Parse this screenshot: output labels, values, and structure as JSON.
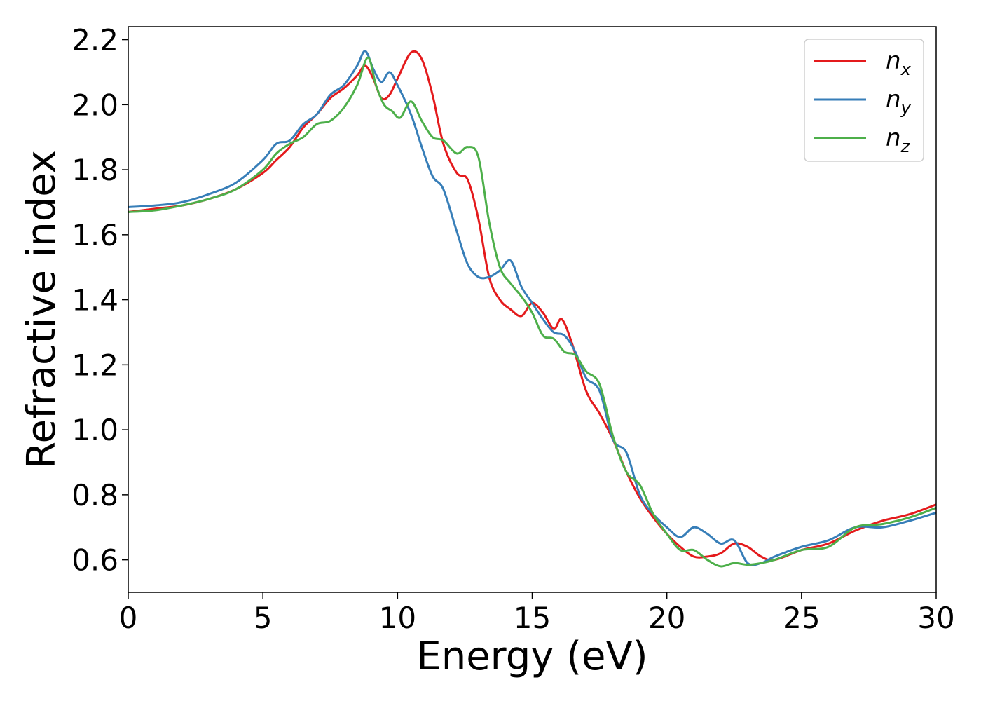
{
  "chart_data": {
    "type": "line",
    "xlabel": "Energy (eV)",
    "ylabel": "Refractive index",
    "xlim": [
      0,
      30
    ],
    "ylim": [
      0.5,
      2.24
    ],
    "xticks": [
      0,
      5,
      10,
      15,
      20,
      25,
      30
    ],
    "xtick_labels": [
      "0",
      "5",
      "10",
      "15",
      "20",
      "25",
      "30"
    ],
    "yticks": [
      0.6,
      0.8,
      1.0,
      1.2,
      1.4,
      1.6,
      1.8,
      2.0,
      2.2
    ],
    "ytick_labels": [
      "0.6",
      "0.8",
      "1.0",
      "1.2",
      "1.4",
      "1.6",
      "1.8",
      "2.0",
      "2.2"
    ],
    "grid": false,
    "legend_position": "top-right",
    "series": [
      {
        "name": "n_x",
        "label_base": "n",
        "label_sub": "x",
        "color": "#e41a1c",
        "x": [
          0,
          1,
          2,
          3,
          4,
          5,
          5.5,
          6,
          6.5,
          7,
          7.5,
          8,
          8.5,
          8.8,
          9.1,
          9.4,
          9.7,
          10,
          10.5,
          10.9,
          11.3,
          11.7,
          12.2,
          12.6,
          13,
          13.4,
          13.8,
          14.2,
          14.6,
          15,
          15.4,
          15.8,
          16.1,
          16.5,
          17,
          17.5,
          18,
          18.5,
          19,
          19.5,
          20,
          20.5,
          21,
          21.5,
          22,
          22.5,
          23,
          23.5,
          24,
          25,
          26,
          27,
          28,
          29,
          30
        ],
        "y": [
          1.67,
          1.68,
          1.69,
          1.71,
          1.74,
          1.79,
          1.83,
          1.87,
          1.93,
          1.97,
          2.02,
          2.05,
          2.09,
          2.12,
          2.08,
          2.02,
          2.03,
          2.08,
          2.16,
          2.14,
          2.03,
          1.88,
          1.79,
          1.77,
          1.65,
          1.47,
          1.4,
          1.37,
          1.35,
          1.39,
          1.36,
          1.31,
          1.34,
          1.26,
          1.12,
          1.05,
          0.97,
          0.87,
          0.79,
          0.73,
          0.68,
          0.64,
          0.61,
          0.61,
          0.62,
          0.65,
          0.64,
          0.61,
          0.6,
          0.63,
          0.65,
          0.69,
          0.72,
          0.74,
          0.77
        ]
      },
      {
        "name": "n_y",
        "label_base": "n",
        "label_sub": "y",
        "color": "#377eb8",
        "x": [
          0,
          1,
          2,
          3,
          4,
          5,
          5.5,
          6,
          6.5,
          7,
          7.5,
          8,
          8.5,
          8.8,
          9.1,
          9.4,
          9.7,
          10,
          10.5,
          10.9,
          11.3,
          11.7,
          12.2,
          12.6,
          13,
          13.4,
          13.8,
          14.2,
          14.6,
          15,
          15.4,
          15.8,
          16.2,
          16.6,
          17,
          17.5,
          18,
          18.5,
          19,
          19.5,
          20,
          20.5,
          21,
          21.5,
          22,
          22.5,
          23,
          23.5,
          24,
          25,
          26,
          27,
          28,
          29,
          30
        ],
        "y": [
          1.685,
          1.69,
          1.7,
          1.725,
          1.76,
          1.83,
          1.88,
          1.89,
          1.94,
          1.97,
          2.03,
          2.06,
          2.12,
          2.165,
          2.11,
          2.07,
          2.1,
          2.06,
          1.97,
          1.87,
          1.78,
          1.74,
          1.61,
          1.51,
          1.47,
          1.47,
          1.49,
          1.52,
          1.44,
          1.39,
          1.34,
          1.3,
          1.29,
          1.24,
          1.16,
          1.12,
          0.97,
          0.93,
          0.8,
          0.74,
          0.7,
          0.67,
          0.7,
          0.68,
          0.65,
          0.66,
          0.59,
          0.59,
          0.61,
          0.64,
          0.66,
          0.7,
          0.7,
          0.72,
          0.745
        ]
      },
      {
        "name": "n_z",
        "label_base": "n",
        "label_sub": "z",
        "color": "#4daf4a",
        "x": [
          0,
          1,
          2,
          3,
          4,
          5,
          5.5,
          6,
          6.5,
          7,
          7.5,
          8,
          8.5,
          8.9,
          9.2,
          9.5,
          9.8,
          10.1,
          10.5,
          10.9,
          11.3,
          11.7,
          12.2,
          12.6,
          13,
          13.4,
          13.8,
          14.2,
          14.6,
          15,
          15.4,
          15.8,
          16.2,
          16.6,
          17,
          17.5,
          18,
          18.5,
          19,
          19.5,
          20,
          20.5,
          21,
          21.5,
          22,
          22.5,
          23,
          23.5,
          24,
          25,
          26,
          27,
          28,
          29,
          30
        ],
        "y": [
          1.67,
          1.675,
          1.69,
          1.71,
          1.74,
          1.8,
          1.85,
          1.88,
          1.9,
          1.94,
          1.95,
          1.99,
          2.06,
          2.145,
          2.06,
          2.0,
          1.98,
          1.96,
          2.01,
          1.95,
          1.9,
          1.89,
          1.85,
          1.87,
          1.84,
          1.64,
          1.5,
          1.45,
          1.41,
          1.36,
          1.29,
          1.28,
          1.24,
          1.23,
          1.18,
          1.14,
          0.98,
          0.87,
          0.83,
          0.74,
          0.68,
          0.63,
          0.63,
          0.6,
          0.58,
          0.59,
          0.585,
          0.59,
          0.6,
          0.63,
          0.64,
          0.7,
          0.71,
          0.73,
          0.76
        ]
      }
    ]
  }
}
